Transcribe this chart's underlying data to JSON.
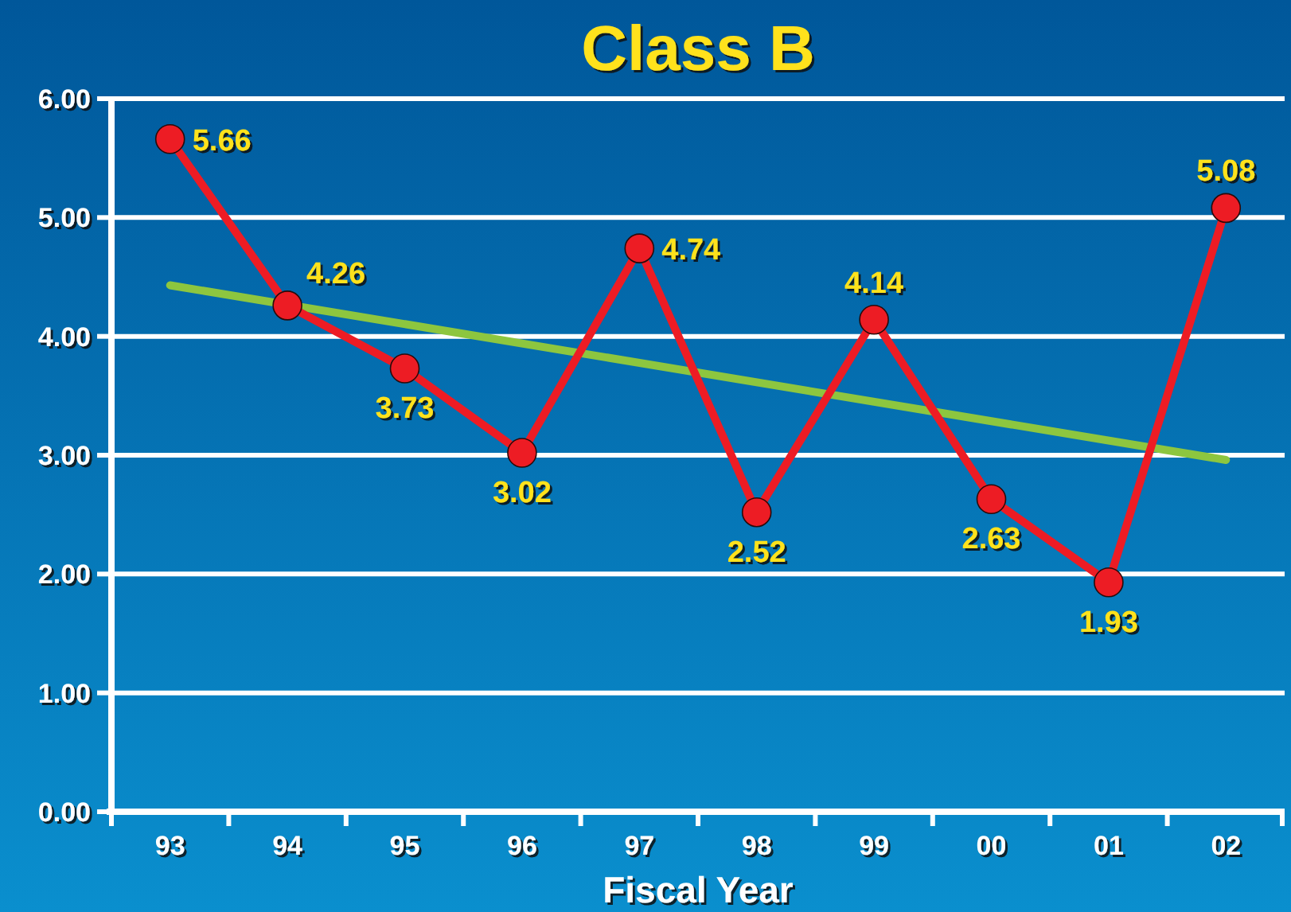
{
  "chart_data": {
    "type": "line",
    "title": "Class B",
    "xlabel": "Fiscal Year",
    "categories": [
      "93",
      "94",
      "95",
      "96",
      "97",
      "98",
      "99",
      "00",
      "01",
      "02"
    ],
    "series": [
      {
        "color": "#ed1c24",
        "values": [
          5.66,
          4.26,
          3.73,
          3.02,
          4.74,
          2.52,
          4.14,
          2.63,
          1.93,
          5.08
        ],
        "value_labels": [
          "5.66",
          "4.26",
          "3.73",
          "3.02",
          "4.74",
          "2.52",
          "4.14",
          "2.63",
          "1.93",
          "5.08"
        ]
      },
      {
        "type": "line",
        "color": "#8dc63f",
        "x": [
          "93",
          "02"
        ],
        "values": [
          4.43,
          2.96
        ],
        "marker": "none"
      }
    ],
    "ylim": [
      0,
      6
    ],
    "yticks": [
      {
        "value": 0,
        "label": "0.00"
      },
      {
        "value": 1,
        "label": "1.00"
      },
      {
        "value": 2,
        "label": "2.00"
      },
      {
        "value": 3,
        "label": "3.00"
      },
      {
        "value": 4,
        "label": "4.00"
      },
      {
        "value": 5,
        "label": "5.00"
      },
      {
        "value": 6,
        "label": "6.00"
      }
    ],
    "grid": "y",
    "marker": "circle",
    "line_style": "solid"
  }
}
